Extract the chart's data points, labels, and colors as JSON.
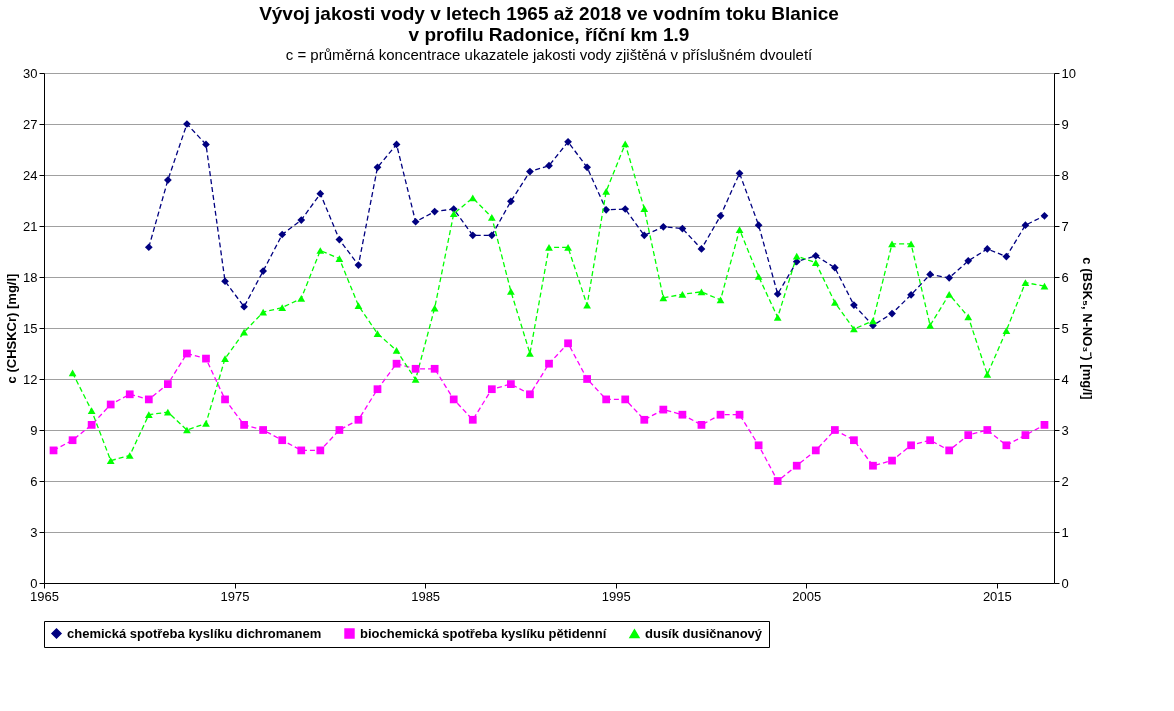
{
  "chart_data": {
    "type": "line",
    "title": "Vývoj jakosti vody v letech 1965 až 2018 ve vodním toku Blanice\nv profilu Radonice, říční km 1.9",
    "subtitle": "c = průměrná koncentrace ukazatele jakosti vody zjištěná v příslušném dvouletí",
    "ylabel": "c (CHSKCr) [mg/l]",
    "y2label": "c (BSK₅, N-NO₃⁻) [mg/l]",
    "x": [
      1965.5,
      1966.5,
      1967.5,
      1968.5,
      1969.5,
      1970.5,
      1971.5,
      1972.5,
      1973.5,
      1974.5,
      1975.5,
      1976.5,
      1977.5,
      1978.5,
      1979.5,
      1980.5,
      1981.5,
      1982.5,
      1983.5,
      1984.5,
      1985.5,
      1986.5,
      1987.5,
      1988.5,
      1989.5,
      1990.5,
      1991.5,
      1992.5,
      1993.5,
      1994.5,
      1995.5,
      1996.5,
      1997.5,
      1998.5,
      1999.5,
      2000.5,
      2001.5,
      2002.5,
      2003.5,
      2004.5,
      2005.5,
      2006.5,
      2007.5,
      2008.5,
      2009.5,
      2010.5,
      2011.5,
      2012.5,
      2013.5,
      2014.5,
      2015.5,
      2016.5,
      2017.5
    ],
    "series": [
      {
        "name": "chemická spotřeba kyslíku dichromanem",
        "color": "#000080",
        "marker": "diamond",
        "values": [
          null,
          null,
          null,
          null,
          null,
          19.75,
          23.7,
          27.0,
          25.8,
          17.75,
          16.25,
          18.35,
          20.5,
          21.35,
          22.9,
          20.2,
          18.7,
          24.45,
          25.8,
          21.25,
          21.85,
          22.0,
          20.45,
          20.45,
          22.45,
          24.2,
          24.55,
          25.95,
          24.45,
          21.95,
          22.0,
          20.45,
          20.95,
          20.85,
          19.65,
          21.6,
          24.1,
          21.05,
          17.0,
          18.9,
          19.25,
          18.55,
          16.35,
          15.15,
          15.85,
          16.95,
          18.15,
          17.95,
          18.95,
          19.65,
          19.2,
          21.05,
          21.6
        ]
      },
      {
        "name": "biochemická spotřeba kyslíku pětidenní",
        "color": "#ff00ff",
        "marker": "square",
        "axis": "y2",
        "values": [
          2.6,
          2.8,
          3.1,
          3.5,
          3.7,
          3.6,
          3.9,
          4.5,
          4.4,
          3.6,
          3.1,
          3.0,
          2.8,
          2.6,
          2.6,
          3.0,
          3.2,
          3.8,
          4.3,
          4.2,
          4.2,
          3.6,
          3.2,
          3.8,
          3.9,
          3.7,
          4.3,
          4.7,
          4.0,
          3.6,
          3.6,
          3.2,
          3.4,
          3.3,
          3.1,
          3.3,
          3.3,
          2.7,
          2.0,
          2.3,
          2.6,
          3.0,
          2.8,
          2.3,
          2.4,
          2.7,
          2.8,
          2.6,
          2.9,
          3.0,
          2.7,
          2.9,
          3.1
        ]
      },
      {
        "name": "dusík dusičnanový",
        "color": "#00ff00",
        "marker": "triangle",
        "axis": "y2",
        "values": [
          null,
          4.12,
          3.38,
          2.4,
          2.5,
          3.3,
          3.35,
          3.0,
          3.13,
          4.4,
          4.92,
          5.31,
          5.4,
          5.58,
          6.52,
          6.36,
          5.44,
          4.89,
          4.56,
          3.99,
          5.39,
          7.24,
          7.55,
          7.17,
          5.72,
          4.5,
          6.58,
          6.58,
          5.45,
          7.68,
          8.61,
          7.34,
          5.59,
          5.66,
          5.71,
          5.55,
          6.93,
          6.01,
          5.21,
          6.41,
          6.28,
          5.5,
          4.98,
          5.14,
          6.65,
          6.65,
          5.05,
          5.66,
          5.22,
          4.09,
          4.95,
          5.89,
          5.82
        ]
      }
    ],
    "xlim": [
      1965,
      2018
    ],
    "xticks": [
      1965,
      1975,
      1985,
      1995,
      2005,
      2015
    ],
    "ylim": [
      0,
      30
    ],
    "yticks": [
      0,
      3,
      6,
      9,
      12,
      15,
      18,
      21,
      24,
      27,
      30
    ],
    "y2lim": [
      0,
      10
    ],
    "y2ticks": [
      0,
      1,
      2,
      3,
      4,
      5,
      6,
      7,
      8,
      9,
      10
    ],
    "grid": "y",
    "legend": "bottom",
    "line_style": "dashed"
  }
}
